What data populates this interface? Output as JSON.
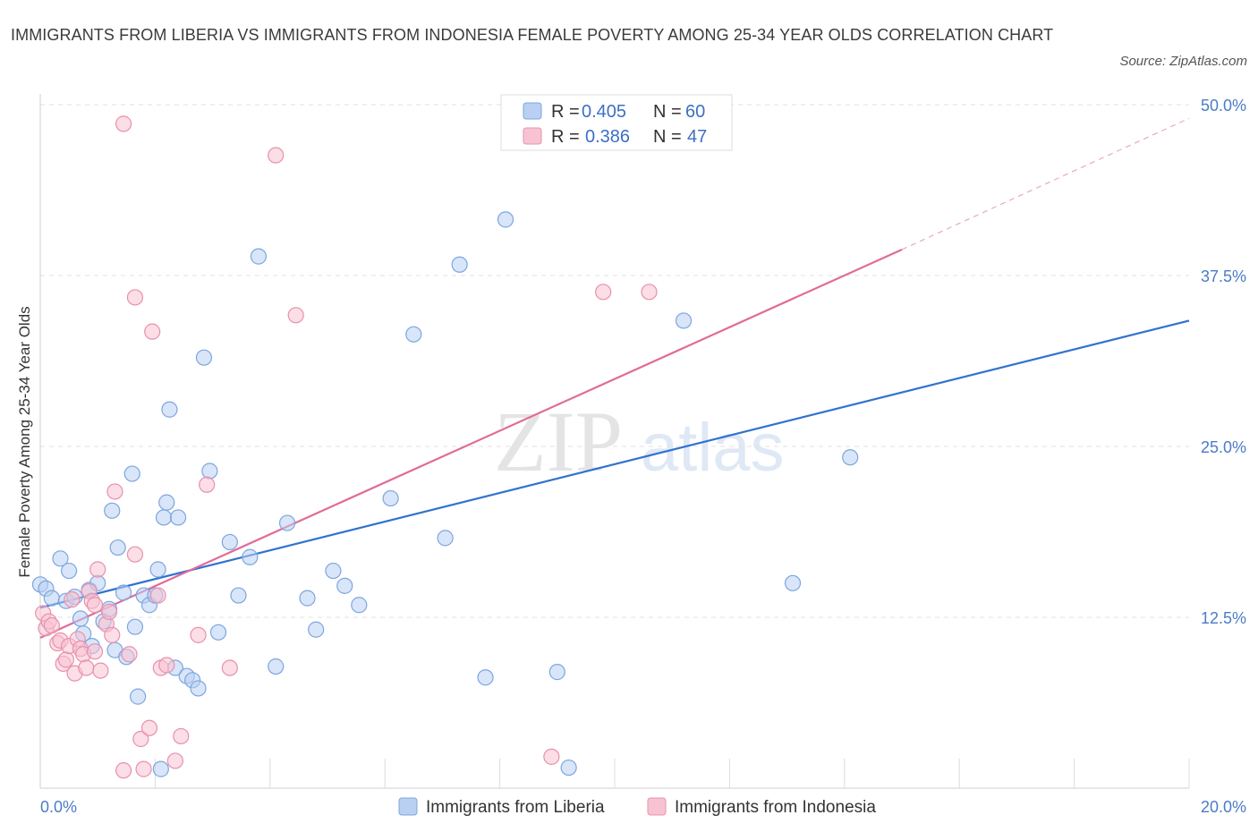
{
  "title": "IMMIGRANTS FROM LIBERIA VS IMMIGRANTS FROM INDONESIA FEMALE POVERTY AMONG 25-34 YEAR OLDS CORRELATION CHART",
  "source": "Source: ZipAtlas.com",
  "watermark": {
    "zip": "ZIP",
    "atlas": "atlas"
  },
  "chart_data": {
    "type": "scatter",
    "xlabel": "",
    "ylabel": "Female Poverty Among 25-34 Year Olds",
    "xlim": [
      0,
      20
    ],
    "ylim": [
      0,
      50
    ],
    "x_tick_labels": [
      {
        "value": 0,
        "label": "0.0%"
      },
      {
        "value": 20,
        "label": "20.0%"
      }
    ],
    "y_tick_labels": [
      {
        "value": 12.5,
        "label": "12.5%"
      },
      {
        "value": 25,
        "label": "25.0%"
      },
      {
        "value": 37.5,
        "label": "37.5%"
      },
      {
        "value": 50,
        "label": "50.0%"
      }
    ],
    "grid": true,
    "legend_placement": "top-center",
    "colors": {
      "liberia_fill": "#b9d0f3",
      "liberia_stroke": "#7ba6e0",
      "liberia_line": "#2f72d0",
      "indonesia_fill": "#f7c3d2",
      "indonesia_stroke": "#e890ad",
      "indonesia_line": "#e06c98",
      "accent_text": "#3c6fc4"
    },
    "stats": [
      {
        "r_label": "R =",
        "r_value": "0.405",
        "n_label": "N =",
        "n_value": "60"
      },
      {
        "r_label": "R =",
        "r_value": "0.386",
        "n_label": "N =",
        "n_value": "47"
      }
    ],
    "series": [
      {
        "name": "Immigrants from Liberia",
        "trend": {
          "x": [
            0,
            20
          ],
          "y": [
            13.2,
            34.2
          ],
          "dashed_to": null
        },
        "points": [
          [
            0.0,
            14.9
          ],
          [
            0.1,
            14.6
          ],
          [
            0.2,
            13.9
          ],
          [
            0.35,
            16.8
          ],
          [
            0.45,
            13.7
          ],
          [
            0.5,
            15.9
          ],
          [
            0.6,
            14.0
          ],
          [
            0.7,
            12.4
          ],
          [
            0.75,
            11.3
          ],
          [
            0.85,
            14.5
          ],
          [
            0.9,
            10.4
          ],
          [
            1.0,
            15.0
          ],
          [
            1.1,
            12.2
          ],
          [
            1.2,
            13.1
          ],
          [
            1.25,
            20.3
          ],
          [
            1.3,
            10.1
          ],
          [
            1.35,
            17.6
          ],
          [
            1.45,
            14.3
          ],
          [
            1.5,
            9.6
          ],
          [
            1.6,
            23.0
          ],
          [
            1.65,
            11.8
          ],
          [
            1.7,
            6.7
          ],
          [
            1.8,
            14.1
          ],
          [
            1.9,
            13.4
          ],
          [
            2.0,
            14.1
          ],
          [
            2.05,
            16.0
          ],
          [
            2.15,
            19.8
          ],
          [
            2.2,
            20.9
          ],
          [
            2.25,
            27.7
          ],
          [
            2.35,
            8.8
          ],
          [
            2.4,
            19.8
          ],
          [
            2.55,
            8.2
          ],
          [
            2.65,
            7.9
          ],
          [
            2.75,
            7.3
          ],
          [
            2.85,
            31.5
          ],
          [
            2.95,
            23.2
          ],
          [
            3.1,
            11.4
          ],
          [
            3.3,
            18.0
          ],
          [
            3.45,
            14.1
          ],
          [
            3.65,
            16.9
          ],
          [
            3.8,
            38.9
          ],
          [
            4.1,
            8.9
          ],
          [
            4.3,
            19.4
          ],
          [
            4.65,
            13.9
          ],
          [
            4.8,
            11.6
          ],
          [
            5.1,
            15.9
          ],
          [
            5.3,
            14.8
          ],
          [
            5.55,
            13.4
          ],
          [
            6.1,
            21.2
          ],
          [
            6.5,
            33.2
          ],
          [
            7.05,
            18.3
          ],
          [
            7.3,
            38.3
          ],
          [
            7.75,
            8.1
          ],
          [
            8.1,
            41.6
          ],
          [
            9.2,
            1.5
          ],
          [
            11.2,
            34.2
          ],
          [
            13.1,
            15.0
          ],
          [
            14.1,
            24.2
          ],
          [
            2.1,
            1.4
          ],
          [
            9.0,
            8.5
          ]
        ]
      },
      {
        "name": "Immigrants from Indonesia",
        "trend": {
          "x": [
            0,
            15
          ],
          "y": [
            11.0,
            39.4
          ],
          "dashed_to": {
            "x": 20,
            "y": 49.0
          }
        },
        "points": [
          [
            0.05,
            12.8
          ],
          [
            0.1,
            11.7
          ],
          [
            0.15,
            12.2
          ],
          [
            0.2,
            11.9
          ],
          [
            0.3,
            10.6
          ],
          [
            0.35,
            10.8
          ],
          [
            0.4,
            9.1
          ],
          [
            0.45,
            9.4
          ],
          [
            0.5,
            10.4
          ],
          [
            0.55,
            13.8
          ],
          [
            0.6,
            8.4
          ],
          [
            0.65,
            10.9
          ],
          [
            0.7,
            10.2
          ],
          [
            0.75,
            9.8
          ],
          [
            0.8,
            8.8
          ],
          [
            0.85,
            14.4
          ],
          [
            0.9,
            13.7
          ],
          [
            0.95,
            13.4
          ],
          [
            1.0,
            16.0
          ],
          [
            1.05,
            8.6
          ],
          [
            1.15,
            12.0
          ],
          [
            1.2,
            12.9
          ],
          [
            1.25,
            11.2
          ],
          [
            1.3,
            21.7
          ],
          [
            1.45,
            48.6
          ],
          [
            1.55,
            9.8
          ],
          [
            1.65,
            17.1
          ],
          [
            1.65,
            35.9
          ],
          [
            1.75,
            3.6
          ],
          [
            1.8,
            1.4
          ],
          [
            1.9,
            4.4
          ],
          [
            1.95,
            33.4
          ],
          [
            2.05,
            14.1
          ],
          [
            2.1,
            8.8
          ],
          [
            2.2,
            9.0
          ],
          [
            2.35,
            2.0
          ],
          [
            2.45,
            3.8
          ],
          [
            2.75,
            11.2
          ],
          [
            2.9,
            22.2
          ],
          [
            3.3,
            8.8
          ],
          [
            4.1,
            46.3
          ],
          [
            4.45,
            34.6
          ],
          [
            8.9,
            2.3
          ],
          [
            9.8,
            36.3
          ],
          [
            10.6,
            36.3
          ],
          [
            1.45,
            1.3
          ],
          [
            0.95,
            10.0
          ]
        ]
      }
    ]
  }
}
